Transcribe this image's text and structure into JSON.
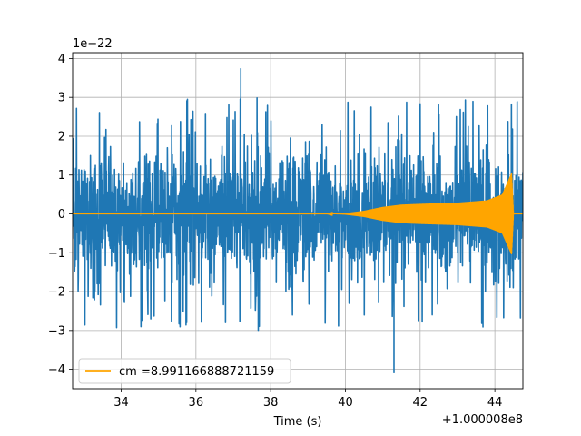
{
  "chart_data": {
    "type": "line",
    "title": "",
    "xlabel": "Time (s)",
    "ylabel": "",
    "x_offset_label": "+1.000008e8",
    "y_scale_label": "1e−22",
    "xlim": [
      32.7,
      44.75
    ],
    "ylim": [
      -4.5,
      4.15
    ],
    "x_ticks": [
      34,
      36,
      38,
      40,
      42,
      44
    ],
    "y_ticks": [
      -4,
      -3,
      -2,
      -1,
      0,
      1,
      2,
      3,
      4
    ],
    "y_tick_labels": [
      "−4",
      "−3",
      "−2",
      "−1",
      "0",
      "1",
      "2",
      "3",
      "4"
    ],
    "grid": true,
    "legend_position": "lower-left",
    "series": [
      {
        "name": "",
        "color": "#1f77b4",
        "description": "noisy strain data",
        "typical_range": [
          -1.5,
          1.5
        ],
        "extremes": {
          "max": 3.75,
          "min": -4.1
        }
      },
      {
        "name": "cm =8.991166888721159",
        "color": "#ffa500",
        "description": "chirp template",
        "envelope": [
          {
            "x": 32.7,
            "y": 0.0
          },
          {
            "x": 39.5,
            "y": 0.0
          },
          {
            "x": 40.0,
            "y": 0.02
          },
          {
            "x": 40.5,
            "y": 0.08
          },
          {
            "x": 41.0,
            "y": 0.18
          },
          {
            "x": 41.5,
            "y": 0.24
          },
          {
            "x": 42.0,
            "y": 0.26
          },
          {
            "x": 43.0,
            "y": 0.29
          },
          {
            "x": 43.8,
            "y": 0.35
          },
          {
            "x": 44.2,
            "y": 0.5
          },
          {
            "x": 44.45,
            "y": 1.05
          },
          {
            "x": 44.5,
            "y": 0.0
          },
          {
            "x": 44.75,
            "y": 0.0
          }
        ]
      }
    ]
  }
}
